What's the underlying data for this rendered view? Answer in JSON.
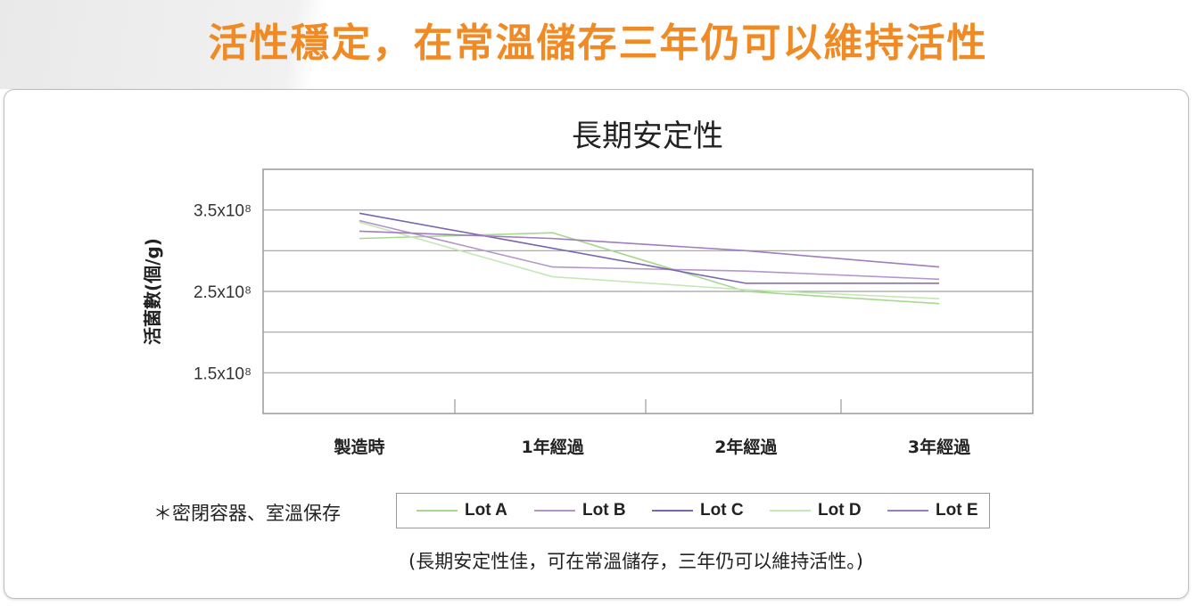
{
  "headline": "活性穩定，在常溫儲存三年仍可以維持活性",
  "note": "＊密閉容器、室溫保存",
  "caption": "(長期安定性佳，可在常溫儲存，三年仍可以維持活性。)",
  "colors": {
    "headline": "#f08a24"
  },
  "chart_data": {
    "type": "line",
    "title": "長期安定性",
    "ylabel": "活菌數(個/g)",
    "xlabel": "",
    "categories": [
      "製造時",
      "1年經過",
      "2年經過",
      "3年經過"
    ],
    "y_ticks": [
      {
        "value": 350000000,
        "label": "3.5x10⁸"
      },
      {
        "value": 250000000,
        "label": "2.5x10⁸"
      },
      {
        "value": 150000000,
        "label": "1.5x10⁸"
      }
    ],
    "ylim": [
      100000000,
      400000000
    ],
    "grid": true,
    "legend_position": "bottom",
    "series": [
      {
        "name": "Lot A",
        "color": "#a8d890",
        "values": [
          315000000,
          322000000,
          250000000,
          235000000
        ]
      },
      {
        "name": "Lot B",
        "color": "#b596c8",
        "values": [
          337000000,
          280000000,
          275000000,
          265000000
        ]
      },
      {
        "name": "Lot C",
        "color": "#7a66ad",
        "values": [
          346000000,
          303000000,
          260000000,
          260000000
        ]
      },
      {
        "name": "Lot D",
        "color": "#c6e6b6",
        "values": [
          335000000,
          268000000,
          252000000,
          241000000
        ]
      },
      {
        "name": "Lot E",
        "color": "#9f7dbf",
        "values": [
          324000000,
          315000000,
          300000000,
          280000000
        ]
      }
    ]
  }
}
